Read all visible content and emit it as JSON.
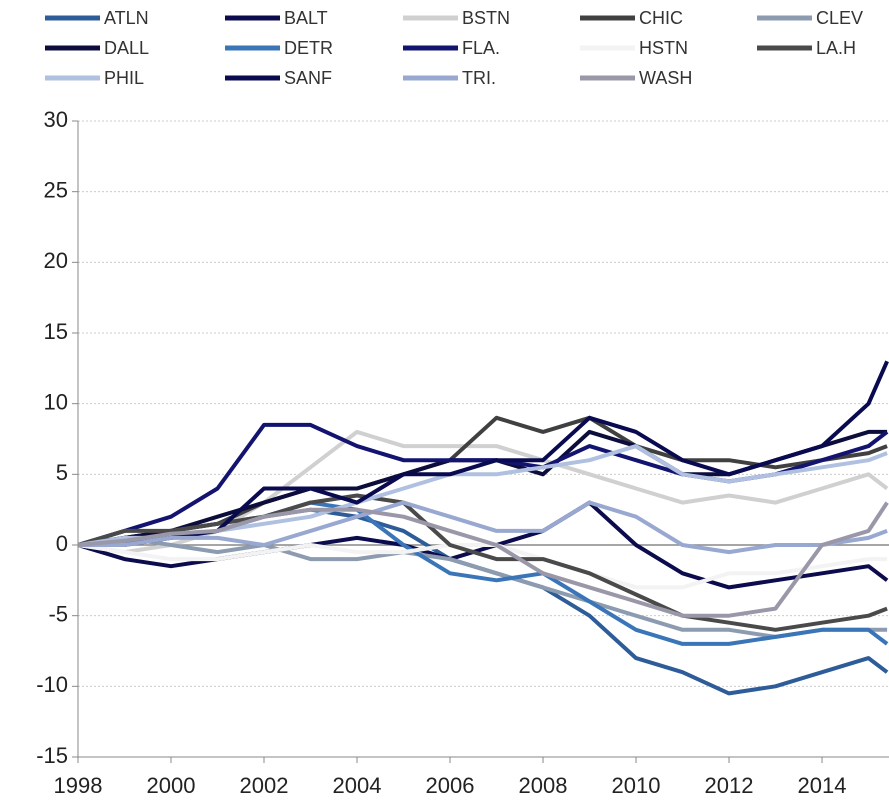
{
  "chart_data": {
    "type": "line",
    "x": [
      1998,
      1999,
      2000,
      2001,
      2002,
      2003,
      2004,
      2005,
      2006,
      2007,
      2008,
      2009,
      2010,
      2011,
      2012,
      2013,
      2014,
      2015,
      2015.4
    ],
    "xlim": [
      1998,
      2015.44
    ],
    "xticks": [
      1998,
      2000,
      2002,
      2004,
      2006,
      2008,
      2010,
      2012,
      2014
    ],
    "ylim": [
      -15,
      30
    ],
    "yticks": [
      -15,
      -10,
      -5,
      0,
      5,
      10,
      15,
      20,
      25,
      30
    ],
    "grid": true,
    "legend": "top",
    "series": [
      {
        "name": "ATLN",
        "color": "#2e5c99",
        "values": [
          0,
          0.5,
          1,
          1.5,
          2,
          2.5,
          2,
          1,
          -1,
          -2,
          -3,
          -5,
          -8,
          -9,
          -10.5,
          -10,
          -9,
          -8,
          -9
        ]
      },
      {
        "name": "BALT",
        "color": "#0b0b4d",
        "values": [
          0,
          -1,
          -1.5,
          -1,
          -0.5,
          0,
          0.5,
          0,
          -1,
          0,
          1,
          3,
          0,
          -2,
          -3,
          -2.5,
          -2,
          -1.5,
          -2.5
        ]
      },
      {
        "name": "BSTN",
        "color": "#d0d0d0",
        "values": [
          0,
          -0.5,
          0,
          1,
          3,
          5.5,
          8,
          7,
          7,
          7,
          6,
          5,
          4,
          3,
          3.5,
          3,
          4,
          5,
          4
        ]
      },
      {
        "name": "CHIC",
        "color": "#404040",
        "values": [
          0,
          0.5,
          1,
          1.5,
          3,
          4,
          4,
          5,
          6,
          9,
          8,
          9,
          7,
          6,
          6,
          5.5,
          6,
          6.5,
          7
        ]
      },
      {
        "name": "CLEV",
        "color": "#8c9bb0",
        "values": [
          0,
          0.5,
          0,
          -0.5,
          0,
          -1,
          -1,
          -0.5,
          -1,
          -2,
          -3,
          -4,
          -5,
          -6,
          -6,
          -6.5,
          -6,
          -6,
          -6
        ]
      },
      {
        "name": "DALL",
        "color": "#0d0d3d",
        "values": [
          0,
          0.5,
          1,
          2,
          3,
          4,
          4,
          5,
          6,
          6,
          5,
          8,
          7,
          5,
          5,
          6,
          7,
          8,
          8
        ]
      },
      {
        "name": "DETR",
        "color": "#3a75b8",
        "values": [
          0,
          0.3,
          0.5,
          1,
          2,
          3,
          2.5,
          0,
          -2,
          -2.5,
          -2,
          -4,
          -6,
          -7,
          -7,
          -6.5,
          -6,
          -6,
          -7
        ]
      },
      {
        "name": "FLA.",
        "color": "#131370",
        "values": [
          0,
          1,
          2,
          4,
          8.5,
          8.5,
          7,
          6,
          6,
          6,
          5.5,
          7,
          6,
          5,
          4.5,
          5,
          6,
          7,
          8
        ]
      },
      {
        "name": "HSTN",
        "color": "#f3f3f3",
        "values": [
          0,
          -0.5,
          -1,
          -1,
          -0.5,
          0,
          -0.5,
          -0.5,
          0,
          0,
          -1,
          -2,
          -3,
          -3,
          -2,
          -2,
          -1.5,
          -1,
          -1
        ]
      },
      {
        "name": "LA.H",
        "color": "#4a4a4a",
        "values": [
          0,
          1,
          1,
          1.5,
          2,
          3,
          3.5,
          3,
          0,
          -1,
          -1,
          -2,
          -3.5,
          -5,
          -5.5,
          -6,
          -5.5,
          -5,
          -4.5
        ]
      },
      {
        "name": "PHIL",
        "color": "#b0c0e0",
        "values": [
          0,
          0.5,
          0.5,
          1,
          1.5,
          2,
          3,
          4,
          5,
          5,
          5.5,
          6,
          7,
          5,
          4.5,
          5,
          5.5,
          6,
          6.5
        ]
      },
      {
        "name": "SANF",
        "color": "#0a0a50",
        "values": [
          0,
          0,
          0.5,
          1,
          4,
          4,
          3,
          5,
          5,
          6,
          6,
          9,
          8,
          6,
          5,
          6,
          7,
          10,
          13
        ]
      },
      {
        "name": "TRI.",
        "color": "#98a8d0",
        "values": [
          0,
          0,
          0.5,
          0.5,
          0,
          1,
          2,
          3,
          2,
          1,
          1,
          3,
          2,
          0,
          -0.5,
          0,
          0,
          0.5,
          1
        ]
      },
      {
        "name": "WASH",
        "color": "#9a98a8",
        "values": [
          0,
          0.3,
          0.8,
          1,
          2,
          2.5,
          2.5,
          2,
          1,
          0,
          -2,
          -3,
          -4,
          -5,
          -5,
          -4.5,
          0,
          1,
          3
        ]
      }
    ]
  }
}
